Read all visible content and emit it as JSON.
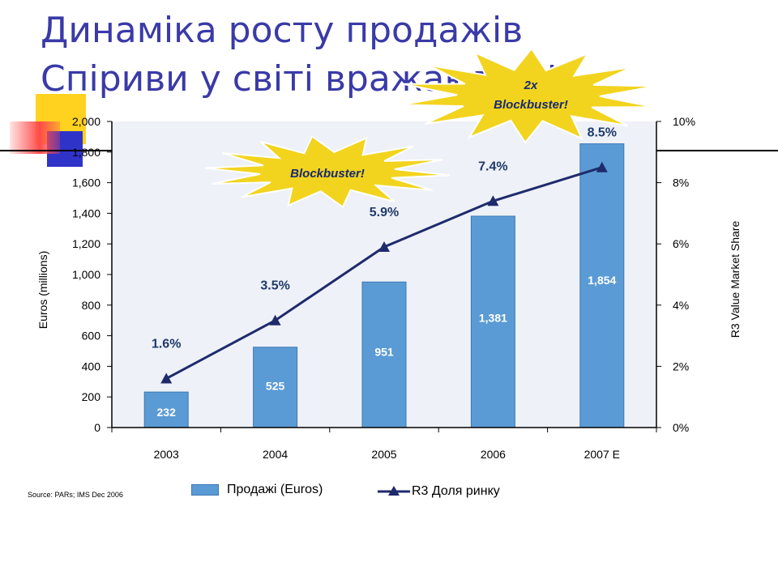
{
  "title": {
    "line1": "Динаміка росту продажів",
    "line2": "Спіриви у світі вражають!!!"
  },
  "colors": {
    "title": "#3a3aa8",
    "bar": "#5b9bd5",
    "bar_border": "#3c78b4",
    "line": "#1f2a6c",
    "plot_bg": "#eef1f8",
    "burst": "#f2d41f"
  },
  "source": "Source: PARs; IMS Dec 2006",
  "bursts": [
    {
      "text_lines": [
        "Blockbuster!"
      ]
    },
    {
      "text_lines": [
        "2x",
        "Blockbuster!"
      ]
    }
  ],
  "chart_data": {
    "type": "bar",
    "categories": [
      "2003",
      "2004",
      "2005",
      "2006",
      "2007 E"
    ],
    "series": [
      {
        "name": "Продажі (Euros)",
        "type": "bar",
        "axis": "left",
        "values": [
          232,
          525,
          951,
          1381,
          1854
        ],
        "labels": [
          "232",
          "525",
          "951",
          "1,381",
          "1,854"
        ]
      },
      {
        "name": "R3 Доля ринку",
        "type": "line",
        "axis": "right",
        "values": [
          1.6,
          3.5,
          5.9,
          7.4,
          8.5
        ],
        "labels": [
          "1.6%",
          "3.5%",
          "5.9%",
          "7.4%",
          "8.5%"
        ]
      }
    ],
    "ylabel": "Euros (millions)",
    "ylim": [
      0,
      2000
    ],
    "yticks": [
      "0",
      "200",
      "400",
      "600",
      "800",
      "1,000",
      "1,200",
      "1,400",
      "1,600",
      "1,800",
      "2,000"
    ],
    "y2label": "R3 Value Market Share",
    "y2lim": [
      0,
      10
    ],
    "y2ticks": [
      "0%",
      "2%",
      "4%",
      "6%",
      "8%",
      "10%"
    ],
    "legend": "bottom",
    "grid": false
  }
}
